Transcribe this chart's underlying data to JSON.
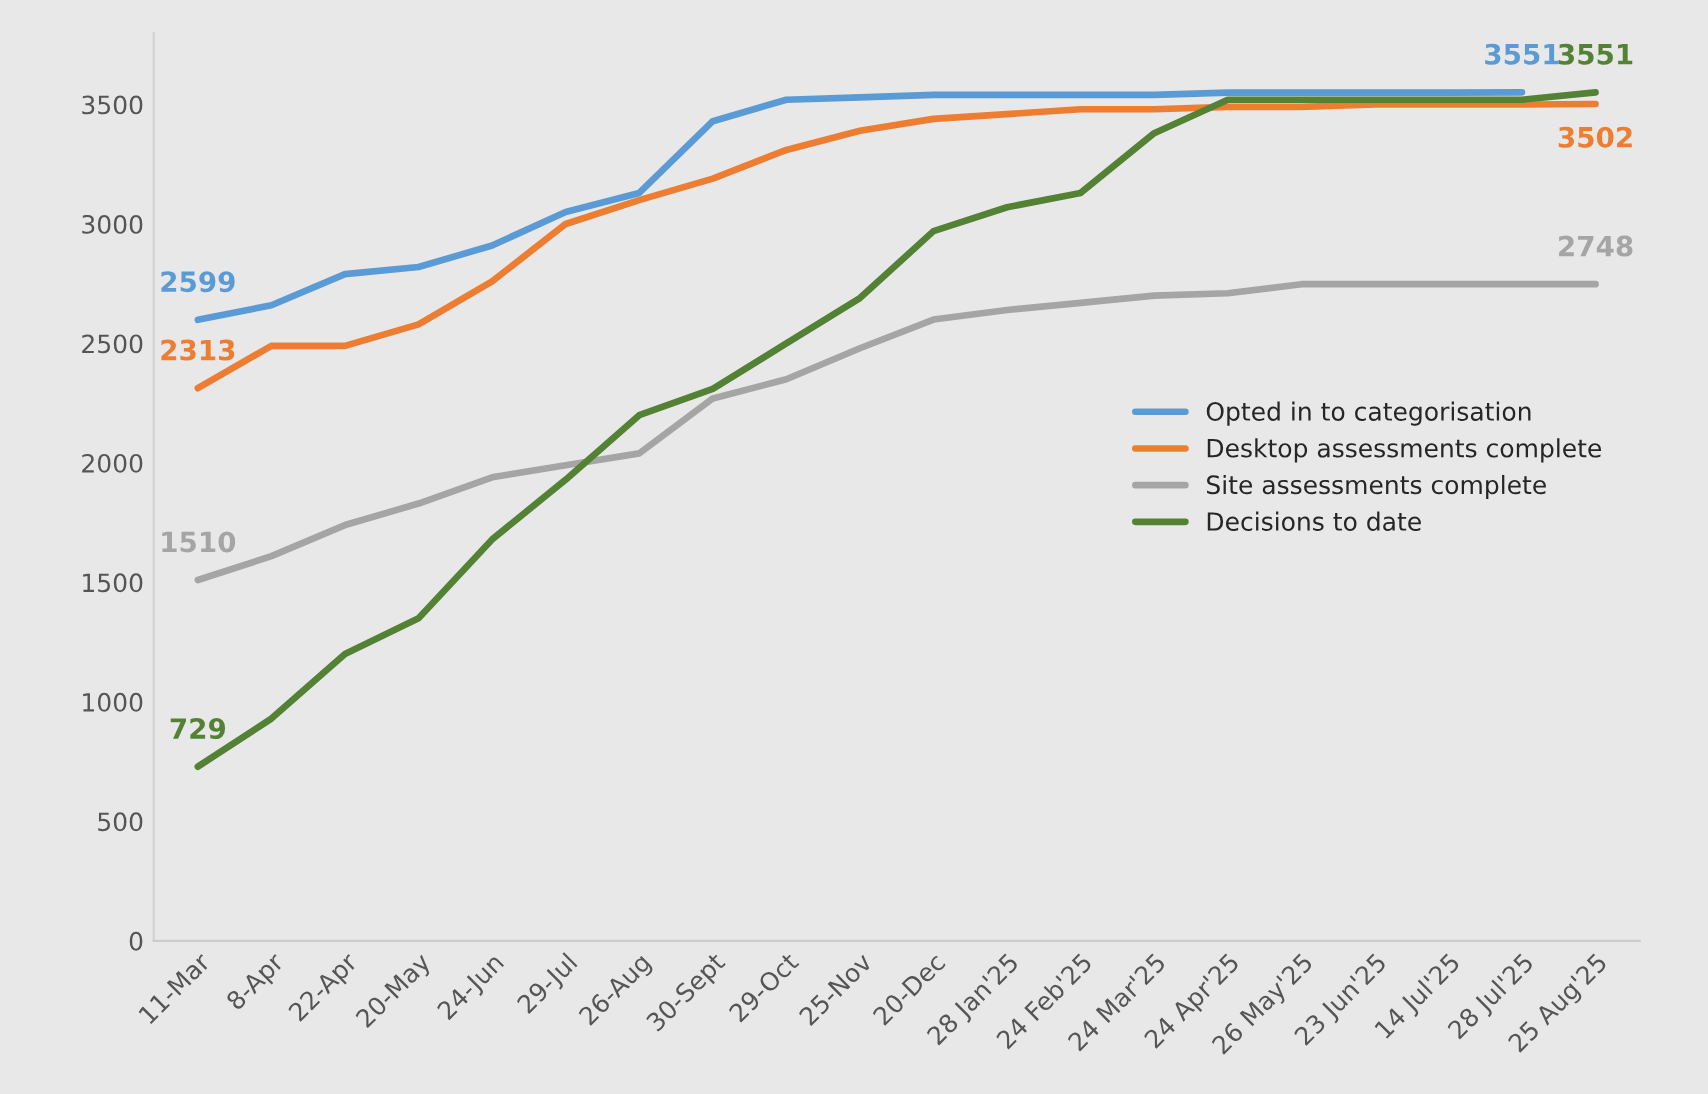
{
  "chart_data": {
    "type": "line",
    "categories": [
      "11-Mar",
      "8-Apr",
      "22-Apr",
      "20-May",
      "24-Jun",
      "29-Jul",
      "26-Aug",
      "30-Sept",
      "29-Oct",
      "25-Nov",
      "20-Dec",
      "28 Jan'25",
      "24 Feb'25",
      "24 Mar'25",
      "24 Apr'25",
      "26 May'25",
      "23 Jun'25",
      "14 Jul'25",
      "28 Jul'25",
      "25 Aug'25"
    ],
    "series": [
      {
        "name": "Opted in to categorisation",
        "color": "#5b9bd5",
        "values": [
          2599,
          2660,
          2790,
          2820,
          2910,
          3050,
          3130,
          3430,
          3520,
          3530,
          3540,
          3540,
          3540,
          3540,
          3550,
          3550,
          3550,
          3550,
          3551,
          null
        ],
        "value_labels": [
          "2599",
          null,
          null,
          null,
          null,
          null,
          null,
          null,
          null,
          null,
          null,
          null,
          null,
          null,
          null,
          null,
          null,
          null,
          "3551",
          null
        ]
      },
      {
        "name": "Desktop assessments complete",
        "color": "#ed7d31",
        "values": [
          2313,
          2490,
          2490,
          2580,
          2760,
          3000,
          3100,
          3190,
          3310,
          3390,
          3440,
          3460,
          3480,
          3480,
          3490,
          3490,
          3500,
          3500,
          3500,
          3502
        ],
        "value_labels": [
          "2313",
          null,
          null,
          null,
          null,
          null,
          null,
          null,
          null,
          null,
          null,
          null,
          null,
          null,
          null,
          null,
          null,
          null,
          null,
          "3502"
        ]
      },
      {
        "name": "Site assessments complete",
        "color": "#a5a5a5",
        "values": [
          1510,
          1610,
          1740,
          1830,
          1940,
          1990,
          2040,
          2270,
          2350,
          2480,
          2600,
          2640,
          2670,
          2700,
          2710,
          2748,
          2748,
          2748,
          2748,
          2748
        ],
        "value_labels": [
          "1510",
          null,
          null,
          null,
          null,
          null,
          null,
          null,
          null,
          null,
          null,
          null,
          null,
          null,
          null,
          null,
          null,
          null,
          null,
          "2748"
        ]
      },
      {
        "name": "Decisions to date",
        "color": "#548235",
        "values": [
          729,
          930,
          1200,
          1350,
          1680,
          1930,
          2200,
          2310,
          2500,
          2690,
          2970,
          3070,
          3130,
          3380,
          3520,
          3520,
          3520,
          3520,
          3520,
          3551
        ],
        "value_labels": [
          "729",
          null,
          null,
          null,
          null,
          null,
          null,
          null,
          null,
          null,
          null,
          null,
          null,
          null,
          null,
          null,
          null,
          null,
          null,
          "3551"
        ]
      }
    ],
    "ylim": [
      0,
      3800
    ],
    "yticks": [
      0,
      500,
      1000,
      1500,
      2000,
      2500,
      3000,
      3500
    ],
    "grid": false,
    "legend": "right",
    "marker": "none",
    "line_style": "solid"
  }
}
